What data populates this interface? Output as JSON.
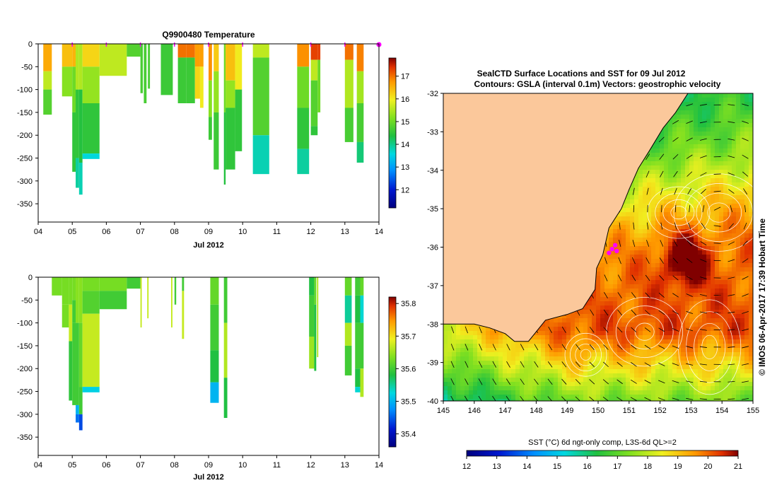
{
  "chart_data": [
    {
      "id": "temperature-profile",
      "type": "heatmap",
      "title": "Q9900480  Temperature",
      "xlabel": "Jul 2012",
      "ylabel": "",
      "xlim": [
        4,
        14
      ],
      "ylim": [
        -390,
        0
      ],
      "x_ticks": [
        "04",
        "05",
        "06",
        "07",
        "08",
        "09",
        "10",
        "11",
        "12",
        "13",
        "14"
      ],
      "y_ticks": [
        "0",
        "-50",
        "-100",
        "-150",
        "-200",
        "-250",
        "-300",
        "-350"
      ],
      "colorbar": {
        "min": 11.2,
        "max": 17.8,
        "ticks": [
          "12",
          "13",
          "14",
          "15",
          "16",
          "17"
        ]
      },
      "surface_markers": [
        5.0,
        6.0,
        7.0,
        8.0,
        9.0,
        10.0,
        12.0,
        13.0,
        14.0
      ],
      "profiles": [
        {
          "x0": 4.15,
          "x1": 4.4,
          "bands": [
            [
              0,
              -60,
              16.6
            ],
            [
              -60,
              -100,
              15.6
            ],
            [
              -100,
              -155,
              14.8
            ]
          ]
        },
        {
          "x0": 4.7,
          "x1": 5.0,
          "bands": [
            [
              0,
              -50,
              16.4
            ],
            [
              -50,
              -115,
              15.2
            ]
          ]
        },
        {
          "x0": 5.0,
          "x1": 5.1,
          "bands": [
            [
              0,
              -50,
              16.5
            ],
            [
              -50,
              -150,
              15.0
            ],
            [
              -150,
              -280,
              14.5
            ]
          ]
        },
        {
          "x0": 5.1,
          "x1": 5.2,
          "bands": [
            [
              0,
              -100,
              15.5
            ],
            [
              -100,
              -250,
              14.5
            ],
            [
              -250,
              -315,
              13.9
            ]
          ]
        },
        {
          "x0": 5.2,
          "x1": 5.3,
          "bands": [
            [
              0,
              -100,
              15.5
            ],
            [
              -100,
              -260,
              14.4
            ],
            [
              -260,
              -330,
              13.8
            ]
          ]
        },
        {
          "x0": 5.3,
          "x1": 5.8,
          "bands": [
            [
              0,
              -50,
              16.2
            ],
            [
              -50,
              -130,
              15.3
            ],
            [
              -130,
              -240,
              14.5
            ],
            [
              -240,
              -252,
              13.6
            ]
          ]
        },
        {
          "x0": 5.8,
          "x1": 6.6,
          "bands": [
            [
              0,
              -70,
              15.6
            ]
          ]
        },
        {
          "x0": 6.6,
          "x1": 7.0,
          "bands": [
            [
              0,
              -28,
              14.8
            ]
          ]
        },
        {
          "x0": 7.0,
          "x1": 7.07,
          "bands": [
            [
              0,
              -108,
              14.7
            ]
          ]
        },
        {
          "x0": 7.1,
          "x1": 7.18,
          "bands": [
            [
              0,
              -130,
              14.7
            ]
          ]
        },
        {
          "x0": 7.22,
          "x1": 7.28,
          "bands": [
            [
              0,
              -98,
              14.7
            ]
          ]
        },
        {
          "x0": 7.6,
          "x1": 7.95,
          "bands": [
            [
              0,
              -112,
              14.6
            ]
          ]
        },
        {
          "x0": 8.1,
          "x1": 8.35,
          "bands": [
            [
              0,
              -30,
              17.0
            ],
            [
              -30,
              -130,
              14.6
            ]
          ]
        },
        {
          "x0": 8.35,
          "x1": 8.6,
          "bands": [
            [
              0,
              -30,
              17.0
            ],
            [
              -30,
              -130,
              14.6
            ]
          ]
        },
        {
          "x0": 8.6,
          "x1": 8.75,
          "bands": [
            [
              0,
              -50,
              16.7
            ],
            [
              -50,
              -120,
              16.2
            ]
          ]
        },
        {
          "x0": 8.75,
          "x1": 8.85,
          "bands": [
            [
              0,
              -50,
              16.7
            ],
            [
              -50,
              -140,
              16.0
            ]
          ]
        },
        {
          "x0": 9.0,
          "x1": 9.1,
          "bands": [
            [
              0,
              -80,
              16.8
            ],
            [
              -80,
              -160,
              15.2
            ],
            [
              -160,
              -210,
              14.6
            ]
          ]
        },
        {
          "x0": 9.15,
          "x1": 9.3,
          "bands": [
            [
              0,
              -60,
              16.3
            ],
            [
              -60,
              -150,
              15.3
            ],
            [
              -150,
              -275,
              14.6
            ]
          ]
        },
        {
          "x0": 9.45,
          "x1": 9.5,
          "bands": [
            [
              0,
              -150,
              15.0
            ],
            [
              -150,
              -308,
              14.4
            ]
          ]
        },
        {
          "x0": 9.5,
          "x1": 9.78,
          "bands": [
            [
              0,
              -80,
              16.4
            ],
            [
              -80,
              -140,
              15.3
            ],
            [
              -140,
              -275,
              14.5
            ]
          ]
        },
        {
          "x0": 9.78,
          "x1": 9.98,
          "bands": [
            [
              0,
              -100,
              16.0
            ],
            [
              -100,
              -235,
              14.5
            ]
          ]
        },
        {
          "x0": 10.3,
          "x1": 10.78,
          "bands": [
            [
              0,
              -30,
              15.6
            ],
            [
              -30,
              -200,
              14.8
            ],
            [
              -200,
              -285,
              13.8
            ]
          ]
        },
        {
          "x0": 11.6,
          "x1": 11.95,
          "bands": [
            [
              0,
              -50,
              16.8
            ],
            [
              -50,
              -140,
              15.0
            ],
            [
              -140,
              -230,
              14.5
            ],
            [
              -230,
              -285,
              13.9
            ]
          ]
        },
        {
          "x0": 12.0,
          "x1": 12.2,
          "bands": [
            [
              0,
              -35,
              17.3
            ],
            [
              -35,
              -80,
              15.6
            ],
            [
              -80,
              -180,
              14.8
            ],
            [
              -180,
              -200,
              14.5
            ]
          ]
        },
        {
          "x0": 12.2,
          "x1": 12.28,
          "bands": [
            [
              0,
              -35,
              17.3
            ],
            [
              -35,
              -150,
              15.0
            ]
          ]
        },
        {
          "x0": 13.0,
          "x1": 13.25,
          "bands": [
            [
              0,
              -35,
              17.0
            ],
            [
              -35,
              -140,
              15.5
            ],
            [
              -140,
              -215,
              14.7
            ]
          ]
        },
        {
          "x0": 13.35,
          "x1": 13.55,
          "bands": [
            [
              0,
              -60,
              16.9
            ],
            [
              -60,
              -130,
              15.4
            ],
            [
              -130,
              -215,
              14.7
            ],
            [
              -215,
              -260,
              14.1
            ]
          ]
        }
      ]
    },
    {
      "id": "salinity-profile",
      "type": "heatmap",
      "title": "",
      "xlabel": "Jul 2012",
      "ylabel": "",
      "xlim": [
        4,
        14
      ],
      "ylim": [
        -390,
        0
      ],
      "x_ticks": [
        "04",
        "05",
        "06",
        "07",
        "08",
        "09",
        "10",
        "11",
        "12",
        "13",
        "14"
      ],
      "y_ticks": [
        "0",
        "-50",
        "-100",
        "-150",
        "-200",
        "-250",
        "-300",
        "-350"
      ],
      "colorbar": {
        "min": 35.36,
        "max": 35.82,
        "ticks": [
          "35.4",
          "35.5",
          "35.6",
          "35.7",
          "35.8"
        ]
      },
      "profiles": [
        {
          "x0": 4.4,
          "x1": 4.7,
          "bands": [
            [
              0,
              -40,
              35.63
            ]
          ]
        },
        {
          "x0": 4.7,
          "x1": 4.9,
          "bands": [
            [
              0,
              -60,
              35.63
            ],
            [
              -60,
              -110,
              35.63
            ]
          ]
        },
        {
          "x0": 4.9,
          "x1": 5.0,
          "bands": [
            [
              0,
              -60,
              35.63
            ],
            [
              -60,
              -140,
              35.67
            ],
            [
              -140,
              -270,
              35.59
            ]
          ]
        },
        {
          "x0": 5.0,
          "x1": 5.1,
          "bands": [
            [
              0,
              -50,
              35.63
            ],
            [
              -50,
              -100,
              35.6
            ],
            [
              -100,
              -280,
              35.6
            ]
          ]
        },
        {
          "x0": 5.1,
          "x1": 5.2,
          "bands": [
            [
              0,
              -100,
              35.64
            ],
            [
              -100,
              -280,
              35.6
            ],
            [
              -280,
              -300,
              35.5
            ],
            [
              -300,
              -318,
              35.46
            ]
          ]
        },
        {
          "x0": 5.2,
          "x1": 5.3,
          "bands": [
            [
              0,
              -100,
              35.64
            ],
            [
              -100,
              -240,
              35.62
            ],
            [
              -240,
              -300,
              35.6
            ],
            [
              -300,
              -335,
              35.44
            ]
          ]
        },
        {
          "x0": 5.3,
          "x1": 5.8,
          "bands": [
            [
              0,
              -30,
              35.63
            ],
            [
              -30,
              -80,
              35.61
            ],
            [
              -80,
              -240,
              35.67
            ],
            [
              -240,
              -252,
              35.52
            ]
          ]
        },
        {
          "x0": 5.8,
          "x1": 6.6,
          "bands": [
            [
              0,
              -30,
              35.63
            ],
            [
              -30,
              -70,
              35.6
            ]
          ]
        },
        {
          "x0": 6.6,
          "x1": 7.0,
          "bands": [
            [
              0,
              -25,
              35.6
            ]
          ]
        },
        {
          "x0": 7.0,
          "x1": 7.04,
          "bands": [
            [
              0,
              -110,
              35.67
            ]
          ]
        },
        {
          "x0": 7.2,
          "x1": 7.24,
          "bands": [
            [
              0,
              -90,
              35.67
            ]
          ]
        },
        {
          "x0": 7.9,
          "x1": 7.94,
          "bands": [
            [
              0,
              -110,
              35.67
            ]
          ]
        },
        {
          "x0": 8.0,
          "x1": 8.05,
          "bands": [
            [
              0,
              -60,
              35.6
            ]
          ]
        },
        {
          "x0": 8.22,
          "x1": 8.28,
          "bands": [
            [
              0,
              -30,
              35.6
            ],
            [
              -30,
              -135,
              35.67
            ]
          ]
        },
        {
          "x0": 9.05,
          "x1": 9.3,
          "bands": [
            [
              0,
              -60,
              35.62
            ],
            [
              -60,
              -160,
              35.6
            ],
            [
              -160,
              -230,
              35.58
            ],
            [
              -230,
              -275,
              35.5
            ]
          ]
        },
        {
          "x0": 9.45,
          "x1": 9.55,
          "bands": [
            [
              0,
              -100,
              35.6
            ],
            [
              -100,
              -220,
              35.66
            ],
            [
              -220,
              -308,
              35.58
            ]
          ]
        },
        {
          "x0": 11.95,
          "x1": 12.1,
          "bands": [
            [
              0,
              -40,
              35.58
            ],
            [
              -40,
              -130,
              35.6
            ],
            [
              -130,
              -200,
              35.65
            ]
          ]
        },
        {
          "x0": 12.1,
          "x1": 12.16,
          "bands": [
            [
              0,
              -60,
              35.62
            ],
            [
              -60,
              -205,
              35.58
            ]
          ]
        },
        {
          "x0": 12.18,
          "x1": 12.22,
          "bands": [
            [
              0,
              -175,
              35.66
            ]
          ]
        },
        {
          "x0": 13.0,
          "x1": 13.2,
          "bands": [
            [
              0,
              -40,
              35.62
            ],
            [
              -40,
              -100,
              35.55
            ],
            [
              -100,
              -150,
              35.66
            ],
            [
              -150,
              -215,
              35.6
            ]
          ]
        },
        {
          "x0": 13.3,
          "x1": 13.45,
          "bands": [
            [
              0,
              -40,
              35.6
            ],
            [
              -40,
              -100,
              35.58
            ],
            [
              -100,
              -200,
              35.6
            ],
            [
              -200,
              -240,
              35.58
            ],
            [
              -240,
              -252,
              35.53
            ]
          ]
        },
        {
          "x0": 13.45,
          "x1": 13.55,
          "bands": [
            [
              0,
              -40,
              35.62
            ],
            [
              -40,
              -100,
              35.53
            ],
            [
              -100,
              -200,
              35.6
            ],
            [
              -200,
              -262,
              35.66
            ]
          ]
        }
      ]
    },
    {
      "id": "sst-map",
      "type": "heatmap",
      "title": "SealCTD Surface Locations and SST for 09 Jul 2012",
      "subtitle": "Contours: GSLA (interval 0.1m) Vectors: geostrophic velocity",
      "xlabel": "",
      "ylabel": "",
      "xlim": [
        145,
        155
      ],
      "ylim": [
        -40,
        -32
      ],
      "x_ticks": [
        "145",
        "146",
        "147",
        "148",
        "149",
        "150",
        "151",
        "152",
        "153",
        "154",
        "155"
      ],
      "y_ticks": [
        "-32",
        "-33",
        "-34",
        "-35",
        "-36",
        "-37",
        "-38",
        "-39",
        "-40"
      ],
      "colorbar": {
        "label": "SST (°C) 6d ngt-only comp, L3S-6d QL>=2",
        "min": 12,
        "max": 21,
        "ticks": [
          "12",
          "13",
          "14",
          "15",
          "16",
          "17",
          "18",
          "19",
          "20",
          "21"
        ]
      },
      "coastline": [
        [
          145.0,
          -38.0
        ],
        [
          146.0,
          -38.0
        ],
        [
          146.5,
          -38.1
        ],
        [
          147.0,
          -38.25
        ],
        [
          147.3,
          -38.45
        ],
        [
          147.75,
          -38.45
        ],
        [
          148.3,
          -37.9
        ],
        [
          149.0,
          -37.75
        ],
        [
          149.5,
          -37.6
        ],
        [
          149.9,
          -37.1
        ],
        [
          149.95,
          -36.55
        ],
        [
          150.15,
          -36.2
        ],
        [
          150.35,
          -35.5
        ],
        [
          150.75,
          -35.0
        ],
        [
          151.0,
          -34.5
        ],
        [
          151.3,
          -33.95
        ],
        [
          151.65,
          -33.5
        ],
        [
          152.1,
          -32.9
        ],
        [
          152.5,
          -32.5
        ],
        [
          152.9,
          -32.0
        ]
      ],
      "tag_locations": [
        [
          150.55,
          -35.95
        ],
        [
          150.45,
          -36.05
        ],
        [
          150.35,
          -36.15
        ],
        [
          150.6,
          -36.1
        ]
      ],
      "credit": "© IMOS 06-Apr-2017 17:39 Hobart Time"
    }
  ]
}
